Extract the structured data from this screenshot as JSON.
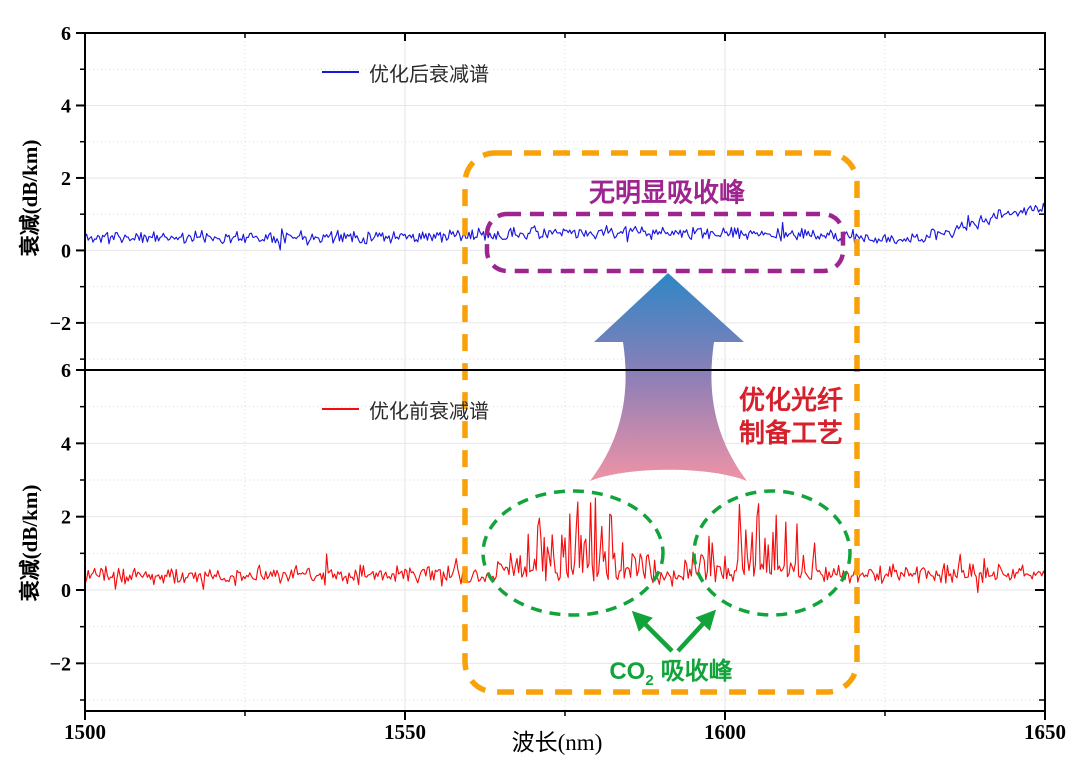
{
  "meta": {
    "figure_kind": "dual-panel attenuation spectra comparison",
    "background": "#ffffff"
  },
  "axes": {
    "xlabel": "波长(nm)",
    "ylabel": "衰减(dB/km)",
    "xlim": [
      1500,
      1650
    ],
    "ylim": [
      -3.3,
      6
    ],
    "x_ticks": [
      1500,
      1550,
      1600,
      1650
    ],
    "x_minor_ticks": [
      1525,
      1575,
      1625
    ],
    "y_ticks": [
      6,
      4,
      2,
      0,
      -2
    ],
    "y_minor_ticks": [
      5,
      3,
      1,
      -1,
      -3
    ]
  },
  "chart_data": [
    {
      "panel": "top",
      "type": "line",
      "legend": "优化后衰减谱",
      "color": "#1a17dd",
      "xlabel": "波长(nm)",
      "ylabel": "衰减(dB/km)",
      "xlim": [
        1500,
        1650
      ],
      "ylim": [
        -3.3,
        6
      ],
      "description": "Attenuation after optimized fiber fabrication: flat noisy ~0.4 dB/km across 1500-1620 nm with no absorption peaks, rising to ~1.2 dB/km near 1650 nm",
      "baseline_anchors": [
        [
          1500,
          0.36
        ],
        [
          1556,
          0.38
        ],
        [
          1566,
          0.46
        ],
        [
          1590,
          0.5
        ],
        [
          1612,
          0.44
        ],
        [
          1620,
          0.33
        ],
        [
          1630,
          0.3
        ],
        [
          1637,
          0.6
        ],
        [
          1644,
          1.05
        ],
        [
          1650,
          1.15
        ]
      ],
      "noise_amplitude": 0.2,
      "spike_probability": 0.05,
      "spike_amplitude": 0.3,
      "bands": [],
      "seed": 11,
      "step": 0.25
    },
    {
      "panel": "bottom",
      "type": "line",
      "legend": "优化前衰减谱",
      "color": "#f50d0d",
      "xlabel": "波长(nm)",
      "ylabel": "衰减(dB/km)",
      "xlim": [
        1500,
        1650
      ],
      "ylim": [
        -3.3,
        6
      ],
      "description": "Attenuation before optimization: noisy ~0.4 dB/km baseline with two CO2 absorption peak bands (~1565-1590 nm and ~1593-1618 nm) spiking up to ~2.4 dB/km",
      "baseline_anchors": [
        [
          1500,
          0.4
        ],
        [
          1614,
          0.42
        ],
        [
          1620,
          0.46
        ],
        [
          1650,
          0.46
        ]
      ],
      "noise_amplitude": 0.29,
      "spike_probability": 0.09,
      "spike_amplitude": 0.38,
      "bands": [
        {
          "range": [
            1564,
            1589.5
          ],
          "peak": 2.1,
          "exp": 3,
          "label": "CO2 absorption band 1"
        },
        {
          "range": [
            1593,
            1617.5
          ],
          "peak": 2.2,
          "exp": 3,
          "label": "CO2 absorption band 2"
        }
      ],
      "seed": 23,
      "step": 0.25
    }
  ],
  "annotations": {
    "no_peak_label": {
      "text": "无明显吸收峰",
      "color": "#9e2490"
    },
    "process_label": {
      "line1": "优化光纤",
      "line2": "制备工艺",
      "color": "#d6212d"
    },
    "co2_label": {
      "prefix": "CO",
      "sub": "2",
      "suffix": "吸收峰",
      "color": "#12a43b"
    },
    "orange_box_color": "#f9a109",
    "purple_box_color": "#9e2490",
    "green_ellipse_color": "#12a43b",
    "arrow_gradient": {
      "top": "#2e86c6",
      "middle": "#8e7fb6",
      "bottom": "#ef93a6"
    }
  }
}
